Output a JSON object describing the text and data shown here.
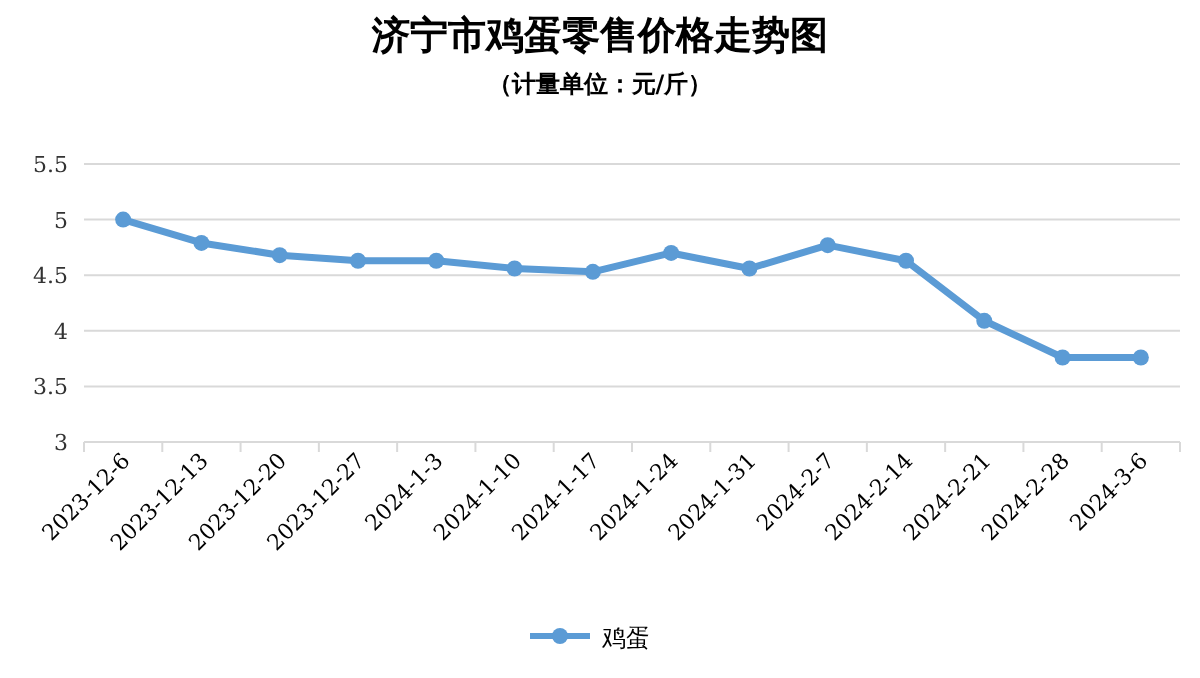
{
  "chart_data": {
    "type": "line",
    "title": "济宁市鸡蛋零售价格走势图",
    "subtitle": "（计量单位：元/斤）",
    "categories": [
      "2023-12-6",
      "2023-12-13",
      "2023-12-20",
      "2023-12-27",
      "2024-1-3",
      "2024-1-10",
      "2024-1-17",
      "2024-1-24",
      "2024-1-31",
      "2024-2-7",
      "2024-2-14",
      "2024-2-21",
      "2024-2-28",
      "2024-3-6"
    ],
    "series": [
      {
        "name": "鸡蛋",
        "color": "#5b9bd5",
        "values": [
          5.0,
          4.79,
          4.68,
          4.63,
          4.63,
          4.56,
          4.53,
          4.7,
          4.56,
          4.77,
          4.63,
          4.09,
          3.76,
          3.76
        ]
      }
    ],
    "ylim": [
      3,
      5.5
    ],
    "yticks": [
      3,
      3.5,
      4,
      4.5,
      5,
      5.5
    ],
    "grid": "y",
    "legend": "bottom",
    "marker": "circle",
    "line_style": "solid"
  }
}
